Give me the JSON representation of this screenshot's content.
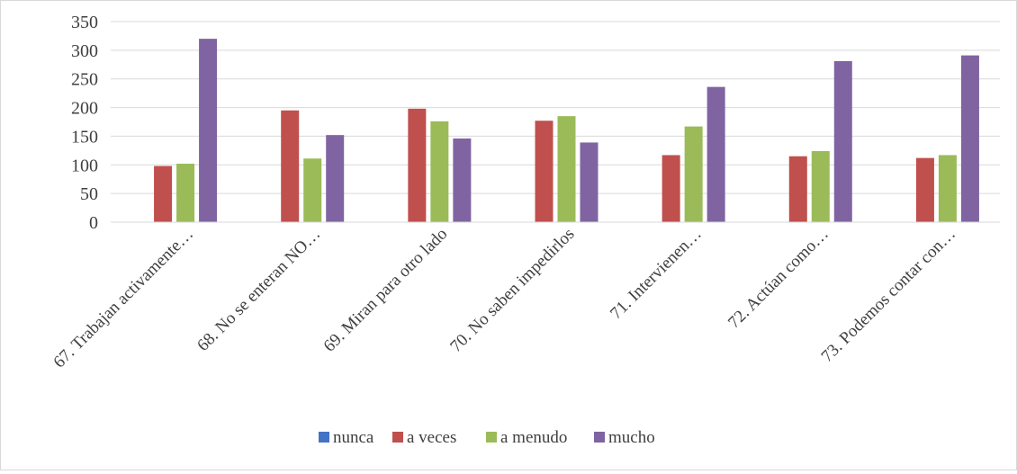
{
  "chart_data": {
    "type": "bar",
    "title": "",
    "xlabel": "",
    "ylabel": "",
    "ylim": [
      0,
      350
    ],
    "yticks": [
      0,
      50,
      100,
      150,
      200,
      250,
      300,
      350
    ],
    "grid": true,
    "legend_position": "bottom",
    "categories": [
      "67. Trabajan activamente…",
      "68. No se enteran NO…",
      "69. Miran para otro lado",
      "70. No saben impedirlos",
      "71. Intervienen…",
      "72. Actúan como…",
      "73. Podemos contar con…"
    ],
    "series": [
      {
        "name": "nunca",
        "color": "#4472c4",
        "values": [
          0,
          0,
          0,
          0,
          0,
          0,
          0
        ]
      },
      {
        "name": "a veces",
        "color": "#c0504d",
        "values": [
          98,
          195,
          198,
          177,
          117,
          115,
          112
        ]
      },
      {
        "name": "a menudo",
        "color": "#9bbb59",
        "values": [
          102,
          111,
          176,
          185,
          167,
          124,
          117
        ]
      },
      {
        "name": "mucho",
        "color": "#8064a2",
        "values": [
          320,
          152,
          146,
          139,
          236,
          281,
          291
        ]
      }
    ]
  }
}
